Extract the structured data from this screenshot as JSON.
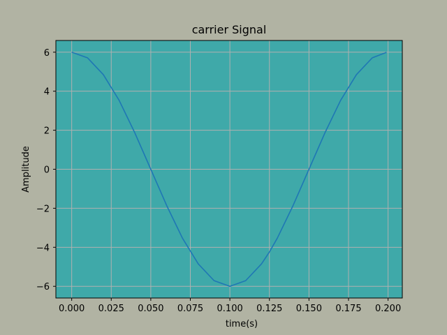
{
  "colors": {
    "figure_background": "#b1b3a3",
    "plot_background": "#3fa9a9",
    "grid": "#b0b0b0",
    "line": "#1f77b4"
  },
  "chart_data": {
    "type": "line",
    "title": "carrier Signal",
    "xlabel": "time(s)",
    "ylabel": "Amplitude",
    "xlim": [
      -0.01,
      0.209
    ],
    "ylim": [
      -6.6,
      6.6
    ],
    "xticks": [
      0.0,
      0.025,
      0.05,
      0.075,
      0.1,
      0.125,
      0.15,
      0.175,
      0.2
    ],
    "xtick_labels": [
      "0.000",
      "0.025",
      "0.050",
      "0.075",
      "0.100",
      "0.125",
      "0.150",
      "0.175",
      "0.200"
    ],
    "yticks": [
      -6,
      -4,
      -2,
      0,
      2,
      4,
      6
    ],
    "ytick_labels": [
      "−6",
      "−4",
      "−2",
      "0",
      "2",
      "4",
      "6"
    ],
    "grid": true,
    "legend": "none",
    "series": [
      {
        "x": [
          0.0,
          0.01,
          0.02,
          0.03,
          0.04,
          0.05,
          0.06,
          0.07,
          0.08,
          0.09,
          0.1,
          0.11,
          0.12,
          0.125,
          0.13,
          0.14,
          0.15,
          0.16,
          0.17,
          0.18,
          0.19,
          0.199
        ],
        "values": [
          6.0,
          5.71,
          4.85,
          3.53,
          1.85,
          0.0,
          -1.85,
          -3.53,
          -4.85,
          -5.71,
          -6.0,
          -5.71,
          -4.85,
          -4.24,
          -3.53,
          -1.85,
          0.0,
          1.85,
          3.53,
          4.85,
          5.71,
          5.99
        ]
      }
    ]
  }
}
